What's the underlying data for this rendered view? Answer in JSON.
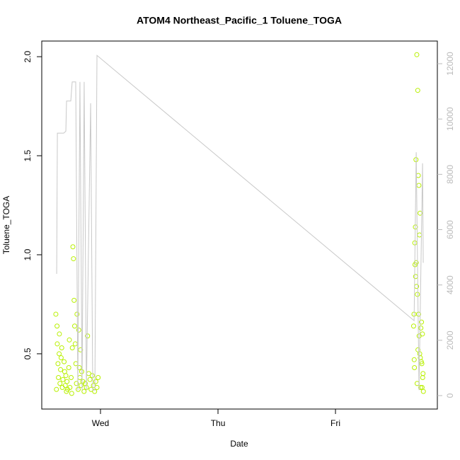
{
  "chart_data": {
    "type": "scatter",
    "title": "ATOM4 Northeast_Pacific_1 Toluene_TOGA",
    "x_label": "Date",
    "y_label": "Toluene_TOGA",
    "xlim": [
      -0.5,
      2.867
    ],
    "xticks": [
      {
        "value": 0,
        "label": "Wed"
      },
      {
        "value": 1,
        "label": "Thu"
      },
      {
        "value": 2,
        "label": "Fri"
      }
    ],
    "ylim": [
      0.221,
      2.079
    ],
    "yticks": [
      0.5,
      {
        "value": 1,
        "label": "1.0"
      },
      1.5,
      {
        "value": 2,
        "label": "2.0"
      }
    ],
    "y2lim": [
      -486,
      12819
    ],
    "y2ticks": [
      0,
      2000,
      4000,
      6000,
      8000,
      10000,
      12000
    ],
    "y2_color": "#bbbbbb",
    "series": [
      {
        "type": "scatter",
        "color": "#b8f000",
        "x": [
          -0.38,
          -0.375,
          -0.37,
          -0.368,
          -0.362,
          -0.358,
          -0.352,
          -0.35,
          -0.345,
          -0.34,
          -0.335,
          -0.33,
          -0.325,
          -0.32,
          -0.31,
          -0.305,
          -0.3,
          -0.295,
          -0.29,
          -0.285,
          -0.28,
          -0.27,
          -0.265,
          -0.26,
          -0.25,
          -0.245,
          -0.24,
          -0.235,
          -0.23,
          -0.225,
          -0.22,
          -0.215,
          -0.21,
          -0.205,
          -0.2,
          -0.19,
          -0.185,
          -0.18,
          -0.175,
          -0.17,
          -0.165,
          -0.16,
          -0.15,
          -0.14,
          -0.13,
          -0.12,
          -0.11,
          -0.1,
          -0.09,
          -0.08,
          -0.07,
          -0.06,
          -0.05,
          -0.04,
          -0.03,
          -0.02,
          2.665,
          2.668,
          2.67,
          2.672,
          2.675,
          2.677,
          2.68,
          2.682,
          2.685,
          2.687,
          2.69,
          2.692,
          2.695,
          2.697,
          2.7,
          2.702,
          2.705,
          2.707,
          2.71,
          2.712,
          2.715,
          2.717,
          2.72,
          2.722,
          2.725,
          2.727,
          2.73,
          2.732,
          2.735,
          2.737,
          2.74,
          2.742,
          2.745,
          2.748
        ],
        "values": [
          0.7,
          0.32,
          0.64,
          0.55,
          0.45,
          0.38,
          0.5,
          0.6,
          0.35,
          0.42,
          0.48,
          0.53,
          0.33,
          0.37,
          0.46,
          0.41,
          0.34,
          0.39,
          0.31,
          0.36,
          0.32,
          0.43,
          0.57,
          0.33,
          0.38,
          0.3,
          0.53,
          1.04,
          0.98,
          0.77,
          0.64,
          0.55,
          0.45,
          0.35,
          0.7,
          0.32,
          0.62,
          0.43,
          0.38,
          0.52,
          0.34,
          0.41,
          0.36,
          0.31,
          0.35,
          0.33,
          0.59,
          0.4,
          0.37,
          0.32,
          0.39,
          0.34,
          0.31,
          0.36,
          0.33,
          0.38,
          0.64,
          0.7,
          0.47,
          0.43,
          1.06,
          0.95,
          1.14,
          0.89,
          1.48,
          0.96,
          0.84,
          2.01,
          0.35,
          0.8,
          1.83,
          0.52,
          1.4,
          0.7,
          1.35,
          0.59,
          1.1,
          0.5,
          1.21,
          0.48,
          0.33,
          0.63,
          0.46,
          0.66,
          0.45,
          0.33,
          0.6,
          0.38,
          0.4,
          0.31
        ]
      },
      {
        "type": "line",
        "axis": "y2",
        "color": "#c8c8c8",
        "x": [
          -0.373,
          -0.367,
          -0.313,
          -0.295,
          -0.289,
          -0.253,
          -0.241,
          -0.211,
          -0.193,
          -0.175,
          -0.157,
          -0.139,
          -0.12,
          -0.084,
          -0.066,
          -0.048,
          -0.03,
          2.669,
          2.687,
          2.711,
          2.741,
          2.747
        ],
        "values": [
          4400,
          9490,
          9490,
          9560,
          10650,
          10650,
          11340,
          11340,
          200,
          11340,
          200,
          11340,
          200,
          10570,
          200,
          200,
          12300,
          2710,
          8800,
          200,
          8400,
          4800
        ]
      }
    ]
  }
}
